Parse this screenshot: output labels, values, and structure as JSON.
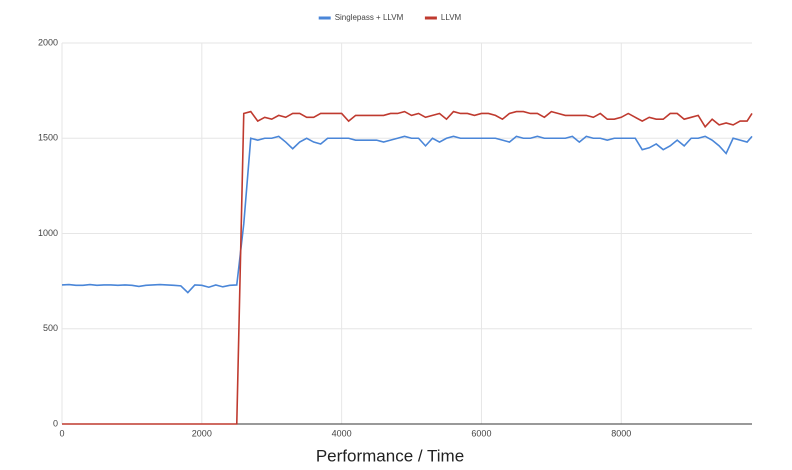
{
  "chart_data": {
    "type": "line",
    "x_label": "Performance / Time",
    "x": [
      0,
      100,
      200,
      300,
      400,
      500,
      600,
      700,
      800,
      900,
      1000,
      1100,
      1200,
      1300,
      1400,
      1500,
      1600,
      1700,
      1800,
      1900,
      2000,
      2100,
      2200,
      2300,
      2400,
      2500,
      2600,
      2700,
      2800,
      2900,
      3000,
      3100,
      3200,
      3300,
      3400,
      3500,
      3600,
      3700,
      3800,
      3900,
      4000,
      4100,
      4200,
      4300,
      4400,
      4500,
      4600,
      4700,
      4800,
      4900,
      5000,
      5100,
      5200,
      5300,
      5400,
      5500,
      5600,
      5700,
      5800,
      5900,
      6000,
      6100,
      6200,
      6300,
      6400,
      6500,
      6600,
      6700,
      6800,
      6900,
      7000,
      7100,
      7200,
      7300,
      7400,
      7500,
      7600,
      7700,
      7800,
      7900,
      8000,
      8100,
      8200,
      8300,
      8400,
      8500,
      8600,
      8700,
      8800,
      8900,
      9000,
      9100,
      9200,
      9300,
      9400,
      9500,
      9600,
      9700,
      9800,
      9870
    ],
    "series": [
      {
        "name": "Singlepass + LLVM",
        "color": "#4a86d8",
        "values": [
          730,
          732,
          728,
          728,
          732,
          728,
          730,
          730,
          728,
          730,
          728,
          722,
          728,
          730,
          732,
          730,
          728,
          725,
          690,
          730,
          728,
          718,
          730,
          720,
          728,
          730,
          1050,
          1500,
          1490,
          1500,
          1500,
          1510,
          1480,
          1445,
          1480,
          1500,
          1480,
          1470,
          1500,
          1500,
          1500,
          1500,
          1490,
          1490,
          1490,
          1490,
          1480,
          1490,
          1500,
          1510,
          1500,
          1500,
          1460,
          1500,
          1480,
          1500,
          1510,
          1500,
          1500,
          1500,
          1500,
          1500,
          1500,
          1490,
          1480,
          1510,
          1500,
          1500,
          1510,
          1500,
          1500,
          1500,
          1500,
          1510,
          1480,
          1510,
          1500,
          1500,
          1490,
          1500,
          1500,
          1500,
          1500,
          1440,
          1450,
          1470,
          1440,
          1460,
          1490,
          1460,
          1500,
          1500,
          1510,
          1490,
          1460,
          1420,
          1500,
          1490,
          1480,
          1510
        ]
      },
      {
        "name": "LLVM",
        "color": "#bf3a2f",
        "values": [
          0,
          0,
          0,
          0,
          0,
          0,
          0,
          0,
          0,
          0,
          0,
          0,
          0,
          0,
          0,
          0,
          0,
          0,
          0,
          0,
          0,
          0,
          0,
          0,
          0,
          0,
          1630,
          1640,
          1590,
          1610,
          1600,
          1620,
          1610,
          1630,
          1630,
          1610,
          1610,
          1630,
          1630,
          1630,
          1630,
          1590,
          1620,
          1620,
          1620,
          1620,
          1620,
          1630,
          1630,
          1640,
          1620,
          1630,
          1610,
          1620,
          1630,
          1600,
          1640,
          1630,
          1630,
          1620,
          1630,
          1630,
          1620,
          1600,
          1630,
          1640,
          1640,
          1630,
          1630,
          1610,
          1640,
          1630,
          1620,
          1620,
          1620,
          1620,
          1610,
          1630,
          1600,
          1600,
          1610,
          1630,
          1610,
          1590,
          1610,
          1600,
          1600,
          1630,
          1630,
          1600,
          1610,
          1620,
          1560,
          1600,
          1570,
          1580,
          1570,
          1590,
          1590,
          1630
        ]
      }
    ],
    "xlim": [
      0,
      9870
    ],
    "ylim": [
      0,
      2000
    ],
    "xticks": [
      0,
      2000,
      4000,
      6000,
      8000
    ],
    "yticks": [
      0,
      500,
      1000,
      1500,
      2000
    ],
    "grid": true,
    "legend": "top"
  }
}
